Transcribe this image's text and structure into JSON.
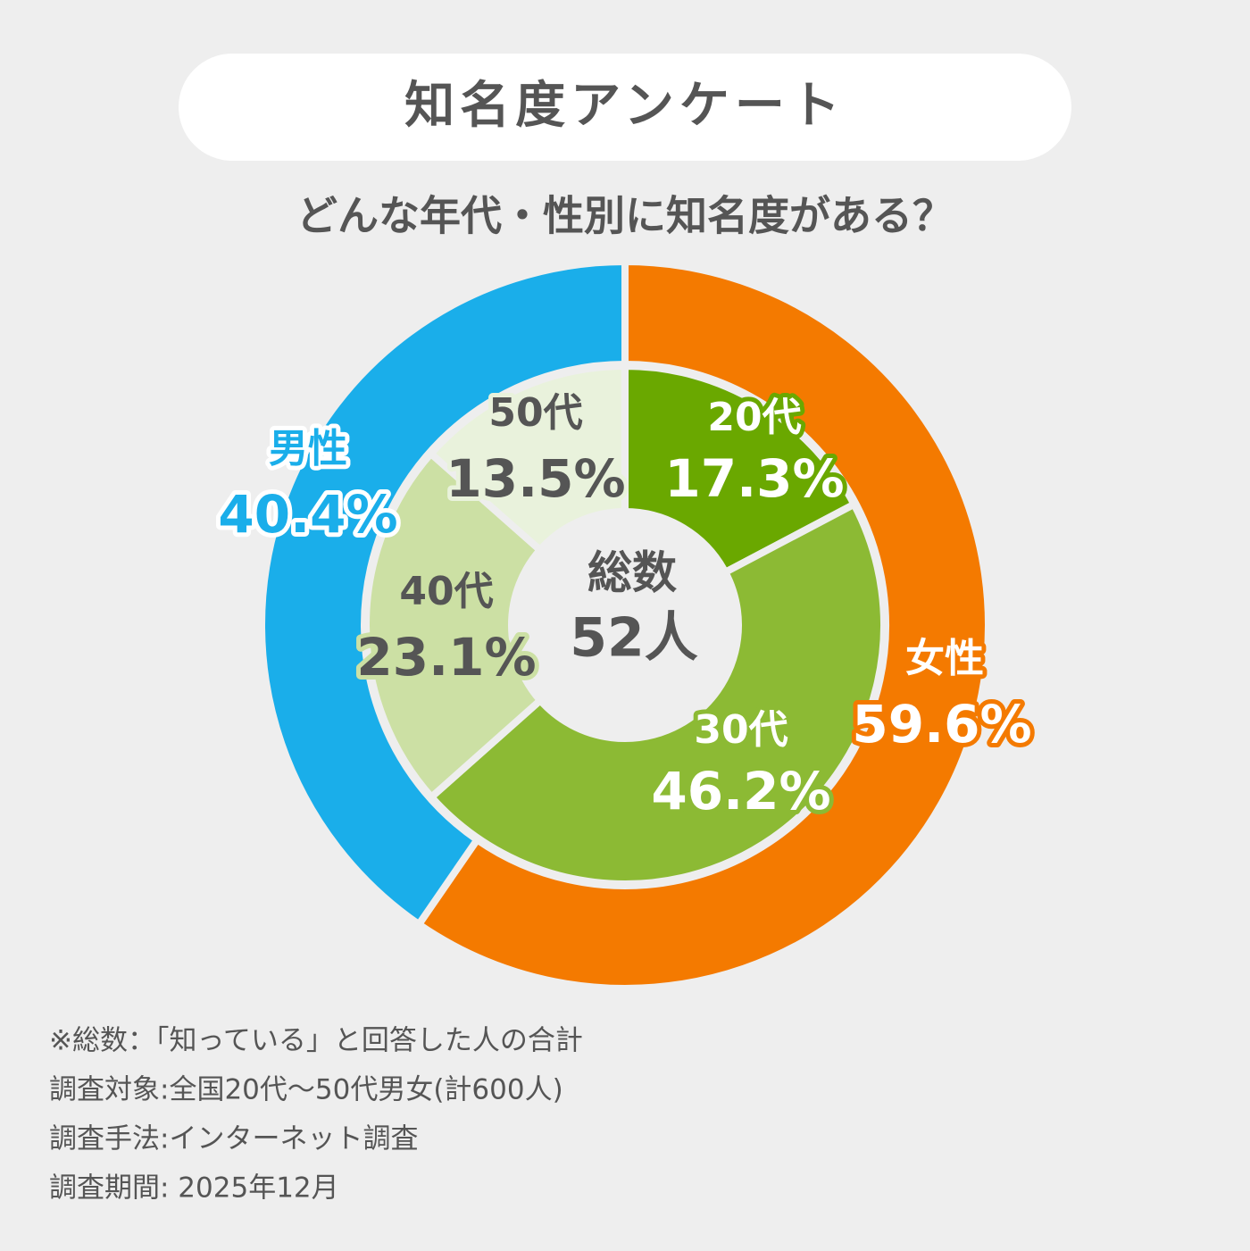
{
  "chart_data": {
    "type": "nested-donut",
    "title": "知名度アンケート",
    "subtitle": "どんな年代・性別に知名度がある？",
    "center_label": "総数",
    "center_value": "52人",
    "outer": {
      "categories": [
        "女性",
        "男性"
      ],
      "values": [
        59.6,
        40.4
      ],
      "value_labels": [
        "59.6%",
        "40.4%"
      ],
      "colors": [
        "#f47a00",
        "#1aaeea"
      ]
    },
    "inner": {
      "categories": [
        "20代",
        "30代",
        "40代",
        "50代"
      ],
      "values": [
        17.3,
        46.2,
        23.1,
        13.5
      ],
      "value_labels": [
        "17.3%",
        "46.2%",
        "23.1%",
        "13.5%"
      ],
      "colors": [
        "#6aa800",
        "#8cba34",
        "#cce0a4",
        "#e9f2dc"
      ]
    },
    "notes": [
      "※総数：「知っている」と回答した人の合計",
      "調査対象:全国20代～50代男女(計600人)",
      "調査手法:インターネット調査",
      "調査期間: 2025年12月"
    ]
  }
}
